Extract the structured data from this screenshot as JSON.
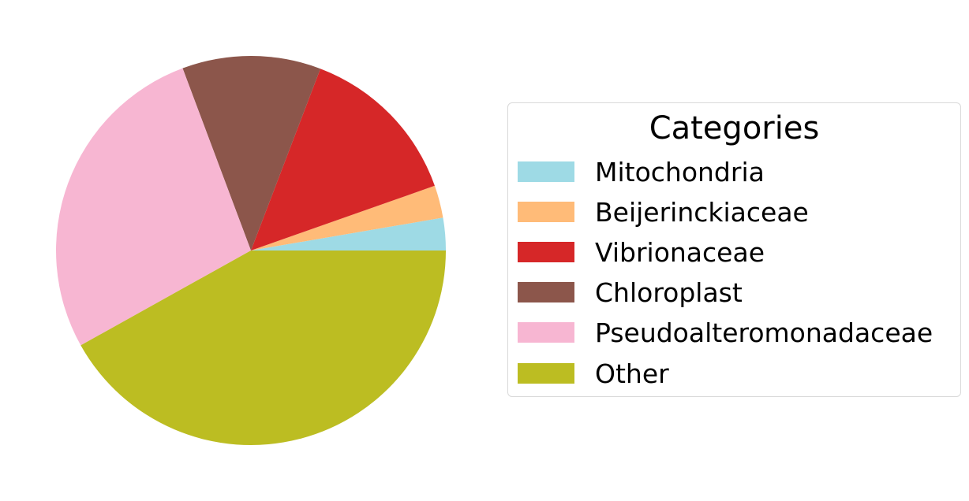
{
  "chart_data": {
    "type": "pie",
    "title": "",
    "slices": [
      {
        "label": "Mitochondria",
        "value": 2.7,
        "color": "#9edae5"
      },
      {
        "label": "Beijerinckiaceae",
        "value": 2.7,
        "color": "#ffbb78"
      },
      {
        "label": "Vibrionaceae",
        "value": 13.8,
        "color": "#d62728"
      },
      {
        "label": "Chloroplast",
        "value": 11.5,
        "color": "#8c564b"
      },
      {
        "label": "Pseudoalteromonadaceae",
        "value": 27.4,
        "color": "#f7b6d2"
      },
      {
        "label": "Other",
        "value": 41.9,
        "color": "#bcbd22"
      }
    ],
    "start_angle_deg": 0,
    "direction": "counterclockwise",
    "legend": {
      "title": "Categories",
      "placement": "right"
    }
  }
}
